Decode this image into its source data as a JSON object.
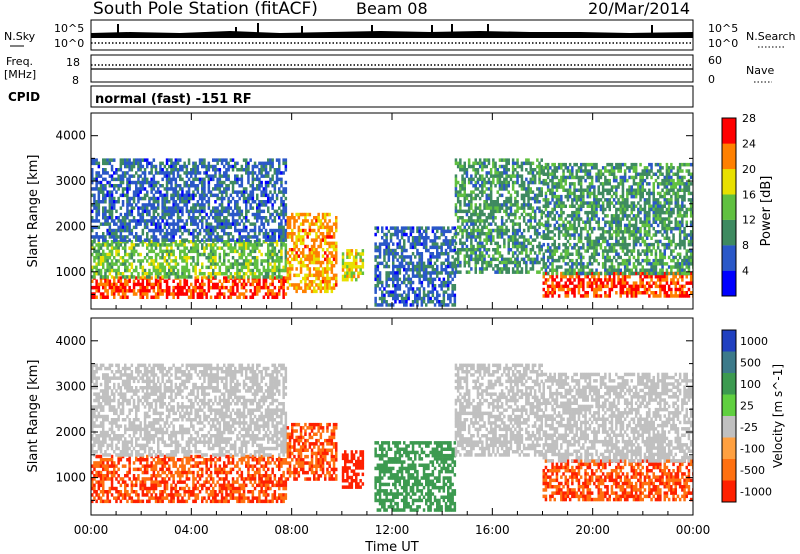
{
  "header": {
    "station": "South Pole Station (fitACF)",
    "beam": "Beam 08",
    "date": "20/Mar/2014"
  },
  "top_left": {
    "nsky": "N.Sky",
    "freq": "Freq.",
    "freq_unit": "[MHz]",
    "cpid": "CPID",
    "nsky_tick_high": "10^5",
    "nsky_tick_low": "10^0",
    "freq_tick_high": "18",
    "freq_tick_low": "8"
  },
  "top_right": {
    "nsearch": "N.Search",
    "nave": "Nave",
    "nsearch_tick_high": "10^5",
    "nsearch_tick_low": "10^0",
    "nave_tick_high": "60",
    "nave_tick_low": "0"
  },
  "cpid_text": "normal (fast) -151 RF",
  "x_axis": {
    "label": "Time UT",
    "ticks": [
      "00:00",
      "04:00",
      "08:00",
      "12:00",
      "16:00",
      "20:00",
      "00:00"
    ]
  },
  "panels": {
    "power": {
      "ylabel": "Slant Range [km]",
      "yticks": [
        "1000",
        "2000",
        "3000",
        "4000"
      ],
      "colorbar_label": "Power [dB]",
      "colorbar_ticks": [
        "4",
        "8",
        "12",
        "16",
        "20",
        "24",
        "28"
      ],
      "colors": [
        "#0000ff",
        "#2a58c8",
        "#3e8a60",
        "#60c040",
        "#e8e000",
        "#ff8000",
        "#ff0000"
      ]
    },
    "velocity": {
      "ylabel": "Slant Range [km]",
      "yticks": [
        "1000",
        "2000",
        "3000",
        "4000"
      ],
      "colorbar_label": "Velocity [m s^-1]",
      "colorbar_ticks": [
        "1000",
        "500",
        "100",
        "25",
        "-25",
        "-100",
        "-500",
        "-1000"
      ],
      "colors": [
        "#2040c0",
        "#3c7a8a",
        "#3c9a50",
        "#60d040",
        "#c0c0c0",
        "#ffa040",
        "#ff7010",
        "#ff2000"
      ]
    }
  },
  "chart_data": {
    "type": "heatmap",
    "title": "South Pole Station (fitACF) Beam 08 20/Mar/2014",
    "xlabel": "Time UT",
    "ylabel": "Slant Range [km]",
    "xlim": [
      "00:00",
      "24:00"
    ],
    "ylim": [
      180,
      4500
    ],
    "series": [
      {
        "name": "Power [dB]",
        "regions": [
          {
            "t_start": 0.0,
            "t_end": 7.8,
            "range_min": 450,
            "range_max": 900,
            "value": 28
          },
          {
            "t_start": 0.0,
            "t_end": 7.8,
            "range_min": 900,
            "range_max": 1700,
            "value": 16
          },
          {
            "t_start": 0.0,
            "t_end": 7.8,
            "range_min": 1700,
            "range_max": 3500,
            "value": 8
          },
          {
            "t_start": 7.8,
            "t_end": 9.8,
            "range_min": 600,
            "range_max": 2300,
            "value": 24
          },
          {
            "t_start": 10.0,
            "t_end": 10.8,
            "range_min": 800,
            "range_max": 1500,
            "value": 20
          },
          {
            "t_start": 11.3,
            "t_end": 14.5,
            "range_min": 300,
            "range_max": 2000,
            "value": 8
          },
          {
            "t_start": 14.5,
            "t_end": 18.0,
            "range_min": 1000,
            "range_max": 3500,
            "value": 12
          },
          {
            "t_start": 18.0,
            "t_end": 24.0,
            "range_min": 450,
            "range_max": 1000,
            "value": 28
          },
          {
            "t_start": 18.0,
            "t_end": 24.0,
            "range_min": 1000,
            "range_max": 3400,
            "value": 12
          }
        ]
      },
      {
        "name": "Velocity [m s^-1]",
        "regions": [
          {
            "t_start": 0.0,
            "t_end": 7.8,
            "range_min": 500,
            "range_max": 1500,
            "value": -500
          },
          {
            "t_start": 0.0,
            "t_end": 7.8,
            "range_min": 1500,
            "range_max": 3500,
            "value": 0
          },
          {
            "t_start": 7.8,
            "t_end": 9.8,
            "range_min": 1000,
            "range_max": 2200,
            "value": -500
          },
          {
            "t_start": 10.0,
            "t_end": 10.8,
            "range_min": 800,
            "range_max": 1600,
            "value": -1000
          },
          {
            "t_start": 11.3,
            "t_end": 14.5,
            "range_min": 300,
            "range_max": 1800,
            "value": 100
          },
          {
            "t_start": 14.5,
            "t_end": 18.0,
            "range_min": 1500,
            "range_max": 3500,
            "value": 0
          },
          {
            "t_start": 18.0,
            "t_end": 24.0,
            "range_min": 500,
            "range_max": 1400,
            "value": -500
          },
          {
            "t_start": 18.0,
            "t_end": 24.0,
            "range_min": 1400,
            "range_max": 3300,
            "value": 0
          }
        ]
      }
    ]
  }
}
